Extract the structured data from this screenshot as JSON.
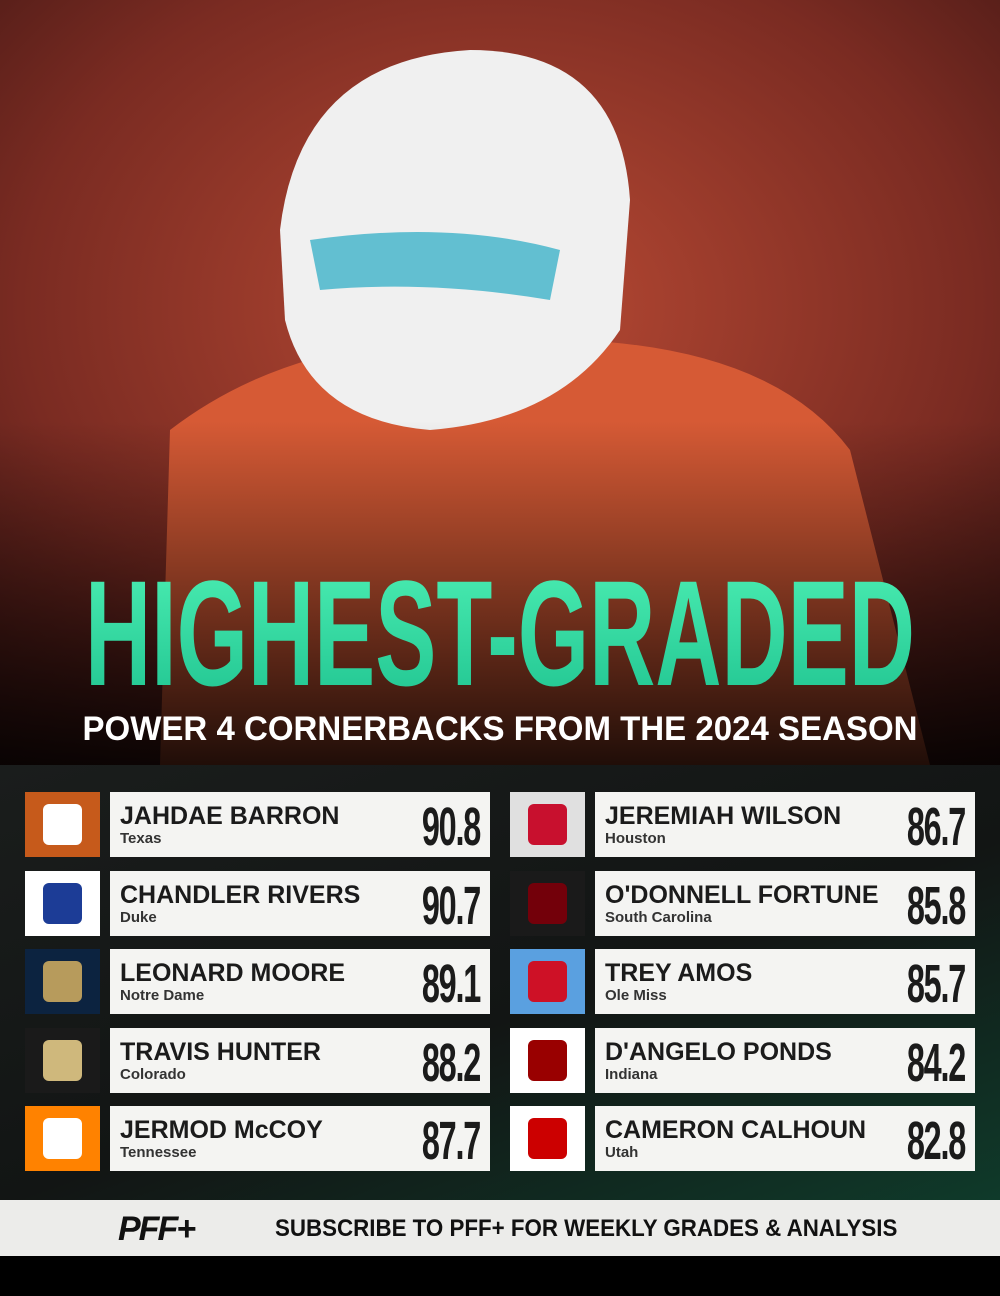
{
  "header": {
    "title": "HIGHEST-GRADED",
    "subtitle": "POWER 4 CORNERBACKS FROM THE 2024 SEASON"
  },
  "players": [
    {
      "name": "JAHDAE BARRON",
      "school": "Texas",
      "grade": "90.8"
    },
    {
      "name": "CHANDLER RIVERS",
      "school": "Duke",
      "grade": "90.7"
    },
    {
      "name": "LEONARD MOORE",
      "school": "Notre Dame",
      "grade": "89.1"
    },
    {
      "name": "TRAVIS HUNTER",
      "school": "Colorado",
      "grade": "88.2"
    },
    {
      "name": "JERMOD McCOY",
      "school": "Tennessee",
      "grade": "87.7"
    },
    {
      "name": "JEREMIAH WILSON",
      "school": "Houston",
      "grade": "86.7"
    },
    {
      "name": "O'DONNELL FORTUNE",
      "school": "South Carolina",
      "grade": "85.8"
    },
    {
      "name": "TREY AMOS",
      "school": "Ole Miss",
      "grade": "85.7"
    },
    {
      "name": "D'ANGELO PONDS",
      "school": "Indiana",
      "grade": "84.2"
    },
    {
      "name": "CAMERON CALHOUN",
      "school": "Utah",
      "grade": "82.8"
    }
  ],
  "footer": {
    "brand": "PFF+",
    "text": "SUBSCRIBE TO PFF+ FOR WEEKLY GRADES & ANALYSIS"
  }
}
